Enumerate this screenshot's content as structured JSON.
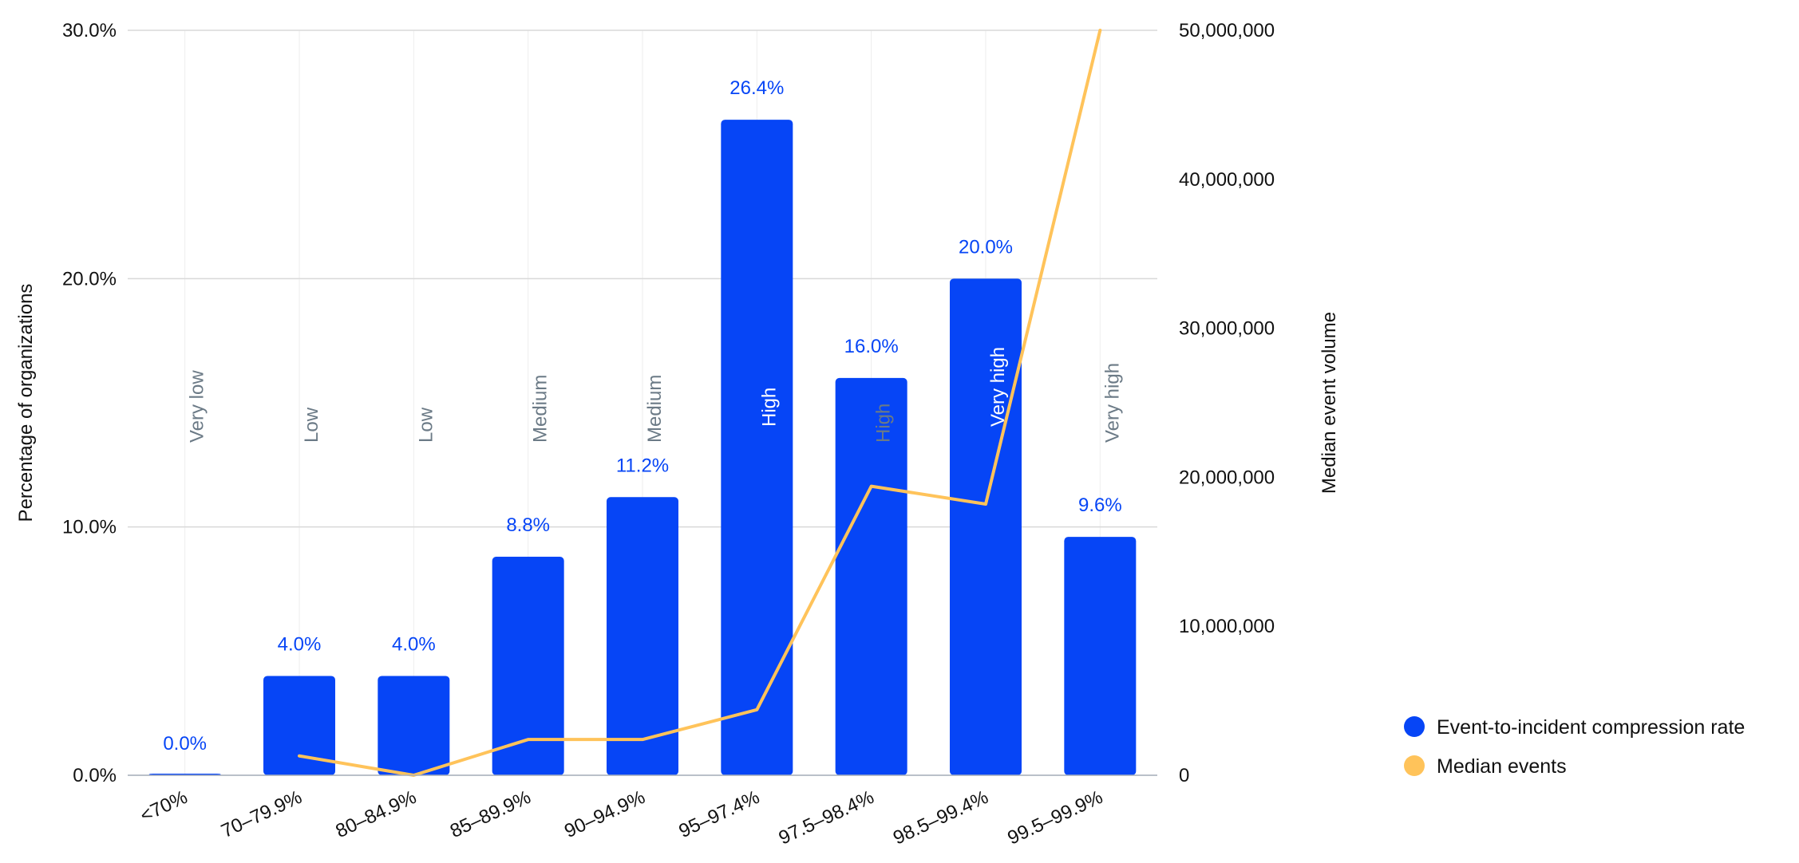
{
  "chart_data": {
    "type": "bar",
    "categories": [
      "<70%",
      "70–79.9%",
      "80–84.9%",
      "85–89.9%",
      "90–94.9%",
      "95–97.4%",
      "97.5–98.4%",
      "98.5–99.4%",
      "99.5–99.9%"
    ],
    "series": [
      {
        "name": "Event-to-incident compression rate",
        "type": "bar",
        "axis": "left",
        "color": "#0645f6",
        "values": [
          0.0,
          4.0,
          4.0,
          8.8,
          11.2,
          26.4,
          16.0,
          20.0,
          9.6
        ],
        "labels": [
          "0.0%",
          "4.0%",
          "4.0%",
          "8.8%",
          "11.2%",
          "26.4%",
          "16.0%",
          "20.0%",
          "9.6%"
        ]
      },
      {
        "name": "Median events",
        "type": "line",
        "axis": "right",
        "color": "#ffc35a",
        "values": [
          null,
          1300000,
          0,
          2400000,
          2400000,
          4400000,
          19400000,
          18200000,
          50000000
        ]
      }
    ],
    "tier_labels": [
      "Very low",
      "Low",
      "Low",
      "Medium",
      "Medium",
      "High",
      "High",
      "Very high",
      "Very high"
    ],
    "ylabel": "Percentage of organizations",
    "y2label": "Median event volume",
    "xlabel": "",
    "ylim": [
      0,
      30
    ],
    "y2lim": [
      0,
      50000000
    ],
    "yticks": [
      "0.0%",
      "10.0%",
      "20.0%",
      "30.0%"
    ],
    "yticks_values": [
      0,
      10,
      20,
      30
    ],
    "y2ticks": [
      "0",
      "10,000,000",
      "20,000,000",
      "30,000,000",
      "40,000,000",
      "50,000,000"
    ],
    "y2ticks_values": [
      0,
      10000000,
      20000000,
      30000000,
      40000000,
      50000000
    ],
    "grid": true,
    "legend_position": "bottom-right",
    "colors": {
      "grid": "#d9d9d9",
      "vgrid": "#eeeeee",
      "tier_inside": "#ffffff",
      "tier_outside": "#6b7a86"
    }
  }
}
